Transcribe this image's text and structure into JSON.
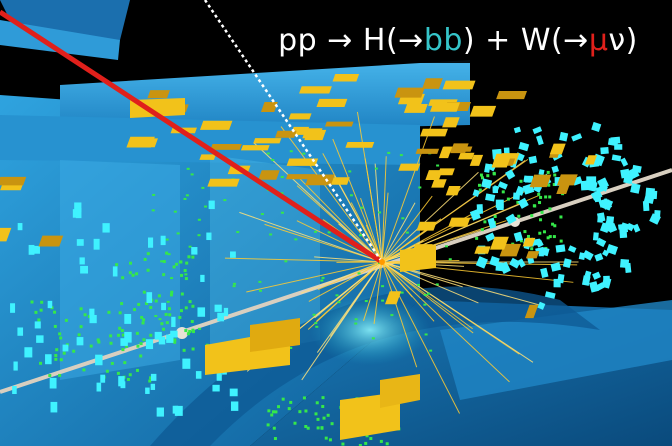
{
  "caption": {
    "pp": "pp",
    "arrow1": " → ",
    "h": "H(→",
    "b1": "b",
    "b2": "b",
    "plusw": ") + W(→",
    "mu": "μ",
    "nu": "ν)"
  },
  "colors": {
    "background": "#000000",
    "detector_blue": "#2a9ad6",
    "muon_track": "#e0201b",
    "neutrino_track": "#ffffff",
    "beam_pipe": "#d8cfc0",
    "tracks": "#ffcc33",
    "calorimeter_gold": "#f2c21a",
    "calorimeter_cyan": "#3ff2ff",
    "hits_green": "#35e84a",
    "b_quark_text": "#35c4c9",
    "muon_text": "#e0201b"
  }
}
